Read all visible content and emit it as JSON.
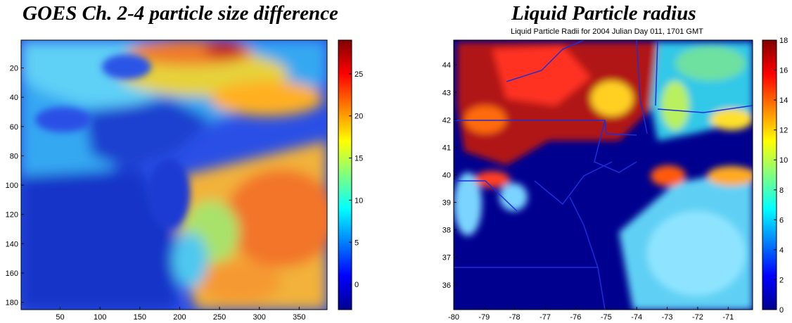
{
  "chart_data": [
    {
      "type": "heatmap",
      "title": "GOES Ch. 2-4 particle size difference",
      "xticks": [
        50,
        100,
        150,
        200,
        250,
        300,
        350
      ],
      "yticks": [
        20,
        40,
        60,
        80,
        100,
        120,
        140,
        160,
        180
      ],
      "xlim": [
        1,
        385
      ],
      "ylim": [
        1,
        185
      ],
      "y_direction": "top-down",
      "colorbar": {
        "ticks": [
          0,
          5,
          10,
          15,
          20,
          25
        ],
        "range": [
          -3,
          29
        ],
        "colormap": "jet"
      }
    },
    {
      "type": "heatmap",
      "title": "Liquid Particle radius",
      "subtitle": "Liquid Particle Radii for 2004 Julian Day 011, 1701 GMT",
      "xticks": [
        -80,
        -79,
        -78,
        -77,
        -76,
        -75,
        -74,
        -73,
        -72,
        -71
      ],
      "yticks": [
        36,
        37,
        38,
        39,
        40,
        41,
        42,
        43,
        44
      ],
      "xlim": [
        -80,
        -70.2
      ],
      "ylim": [
        35.1,
        44.9
      ],
      "colorbar": {
        "ticks": [
          0,
          2,
          4,
          6,
          8,
          10,
          12,
          14,
          16,
          18
        ],
        "range": [
          0,
          18
        ],
        "colormap": "jet"
      },
      "overlay": "state and coastline boundaries",
      "overlay_color": "#1f2fd6"
    }
  ]
}
